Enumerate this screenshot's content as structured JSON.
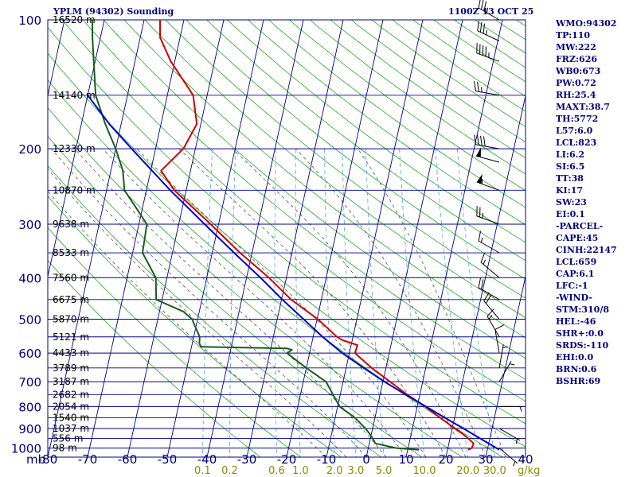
{
  "header": {
    "title": "YPLM (94302) Sounding",
    "timestamp": "1100Z 13 OCT 25"
  },
  "colors": {
    "isobar": "#00008b",
    "isotherm": "#00008b",
    "dry_adiabat": "#22aa22",
    "moist_adiabat": "#555555",
    "mixing_ratio": "#4aa8d8",
    "temperature": "#cc0000",
    "dewpoint": "#1a5c1a",
    "parcel": "#0000cc",
    "wind_barb": "#000000",
    "pressure_labels": "#000080",
    "temp_labels": "#000080",
    "mix_labels": "#8b8b00",
    "height_labels": "#000000",
    "indices_text": "#000080"
  },
  "chart_data": {
    "type": "skew-t",
    "title": "YPLM (94302) Sounding",
    "pressure_range_mb": [
      100,
      1050
    ],
    "temperature_range_c": [
      -80,
      40
    ],
    "pressure_unit_label": "mb",
    "mixing_ratio_unit_label": "g/kg",
    "isobars_mb": [
      100,
      200,
      300,
      400,
      500,
      600,
      700,
      800,
      900,
      1000
    ],
    "extra_isobars_mb": [
      150,
      250,
      350,
      450,
      550,
      650,
      750,
      850,
      950
    ],
    "temperature_ticks": [
      "-80",
      "-70",
      "-60",
      "-50",
      "-40",
      "-30",
      "-20",
      "-10",
      "0",
      "10",
      "20",
      "30",
      "40"
    ],
    "temperature_tick_values": [
      -80,
      -70,
      -60,
      -50,
      -40,
      -30,
      -20,
      -10,
      0,
      10,
      20,
      30,
      40
    ],
    "mixing_ratio_labels": [
      "0.1",
      "0.2",
      "0.6",
      "1.0",
      "2.0",
      "3.0",
      "5.0",
      "10.0",
      "20.0",
      "30.0"
    ],
    "mixing_ratio_values": [
      0.1,
      0.2,
      0.6,
      1.0,
      2.0,
      3.0,
      5.0,
      10.0,
      20.0,
      30.0
    ],
    "height_levels": [
      {
        "p": 100,
        "label": "16520 m"
      },
      {
        "p": 150,
        "label": "14140 m"
      },
      {
        "p": 200,
        "label": "12330 m"
      },
      {
        "p": 250,
        "label": "10870 m"
      },
      {
        "p": 300,
        "label": "9638 m"
      },
      {
        "p": 350,
        "label": "8533 m"
      },
      {
        "p": 400,
        "label": "7560 m"
      },
      {
        "p": 450,
        "label": "6675 m"
      },
      {
        "p": 500,
        "label": "5870 m"
      },
      {
        "p": 550,
        "label": "5121 m"
      },
      {
        "p": 600,
        "label": "4433 m"
      },
      {
        "p": 650,
        "label": "3789 m"
      },
      {
        "p": 700,
        "label": "3187 m"
      },
      {
        "p": 750,
        "label": "2682 m"
      },
      {
        "p": 800,
        "label": "2054 m"
      },
      {
        "p": 850,
        "label": "1540 m"
      },
      {
        "p": 900,
        "label": "1037 m"
      },
      {
        "p": 950,
        "label": "556 m"
      },
      {
        "p": 1000,
        "label": "98 m"
      }
    ],
    "series": [
      {
        "name": "Temperature",
        "pressure": [
          1009,
          1000,
          975,
          950,
          925,
          900,
          875,
          850,
          800,
          750,
          700,
          650,
          600,
          575,
          560,
          550,
          500,
          450,
          400,
          350,
          300,
          250,
          225,
          200,
          175,
          150,
          125,
          110,
          100
        ],
        "values": [
          25.2,
          26.0,
          26.2,
          24.6,
          22.8,
          20.6,
          18.6,
          16.4,
          12.0,
          6.8,
          1.8,
          -3.6,
          -8.6,
          -8.4,
          -12.4,
          -14.0,
          -19.8,
          -27.6,
          -34.4,
          -43.0,
          -52.0,
          -63.0,
          -67.4,
          -63.0,
          -61.0,
          -63.5,
          -71.0,
          -75.0,
          -76.0
        ]
      },
      {
        "name": "Dewpoint",
        "pressure": [
          1009,
          1000,
          975,
          950,
          925,
          900,
          850,
          800,
          700,
          650,
          600,
          590,
          585,
          580,
          570,
          550,
          500,
          480,
          450,
          400,
          350,
          300,
          250,
          225,
          200,
          175,
          150,
          110,
          100
        ],
        "values": [
          12.8,
          7.0,
          1.5,
          0.6,
          -0.5,
          -1.8,
          -5.0,
          -9.5,
          -14.3,
          -20.0,
          -25.7,
          -24.6,
          -26.0,
          -47.6,
          -48.2,
          -48.5,
          -51.4,
          -54.0,
          -61.5,
          -62.8,
          -67.5,
          -68.0,
          -75.5,
          -77.0,
          -80.0,
          -84.0,
          -88.0,
          -92.0,
          -93.0
        ]
      },
      {
        "name": "Parcel",
        "pressure": [
          1009,
          1000,
          950,
          900,
          850,
          800,
          750,
          700,
          650,
          600,
          550,
          500,
          450,
          400,
          350,
          300,
          250,
          200,
          175,
          150
        ],
        "values": [
          33.0,
          32.2,
          27.6,
          22.8,
          17.6,
          12.2,
          6.4,
          0.4,
          -5.6,
          -11.8,
          -17.6,
          -23.4,
          -29.8,
          -36.5,
          -44.5,
          -53.5,
          -64.0,
          -76.0,
          -83.0,
          -90.0
        ]
      }
    ],
    "wind_barbs": [
      {
        "p": 100,
        "dir": 300,
        "kt": 35
      },
      {
        "p": 112,
        "dir": 295,
        "kt": 35
      },
      {
        "p": 125,
        "dir": 290,
        "kt": 45
      },
      {
        "p": 150,
        "dir": 280,
        "kt": 25
      },
      {
        "p": 200,
        "dir": 280,
        "kt": 40
      },
      {
        "p": 215,
        "dir": 285,
        "kt": 50
      },
      {
        "p": 250,
        "dir": 290,
        "kt": 55
      },
      {
        "p": 300,
        "dir": 290,
        "kt": 25
      },
      {
        "p": 350,
        "dir": 300,
        "kt": 15
      },
      {
        "p": 400,
        "dir": 310,
        "kt": 15
      },
      {
        "p": 450,
        "dir": 300,
        "kt": 20
      },
      {
        "p": 500,
        "dir": 320,
        "kt": 20
      },
      {
        "p": 550,
        "dir": 330,
        "kt": 15
      },
      {
        "p": 600,
        "dir": 350,
        "kt": 10
      },
      {
        "p": 650,
        "dir": 10,
        "kt": 5
      },
      {
        "p": 700,
        "dir": 30,
        "kt": 5
      },
      {
        "p": 800,
        "dir": 90,
        "kt": 5
      },
      {
        "p": 900,
        "dir": 120,
        "kt": 5
      },
      {
        "p": 1000,
        "dir": 130,
        "kt": 5
      }
    ]
  },
  "indices": [
    "WMO:94302",
    "TP:110",
    "MW:222",
    "FRZ:626",
    "WB0:673",
    "PW:0.72",
    "RH:25.4",
    "MAXT:38.7",
    "TH:5772",
    "L57:6.0",
    "LCL:823",
    "LI:6.2",
    "SI:6.5",
    "TT:38",
    "KI:17",
    "SW:23",
    "EI:0.1",
    "-PARCEL-",
    "CAPE:45",
    "CINH:22147",
    "LCL:659",
    "CAP:6.1",
    "LFC:-1",
    "-WIND-",
    "STM:310/8",
    "HEL:-46",
    "SHR+:0.0",
    "SRDS:-110",
    "EHI:0.0",
    "BRN:0.6",
    "BSHR:69"
  ]
}
